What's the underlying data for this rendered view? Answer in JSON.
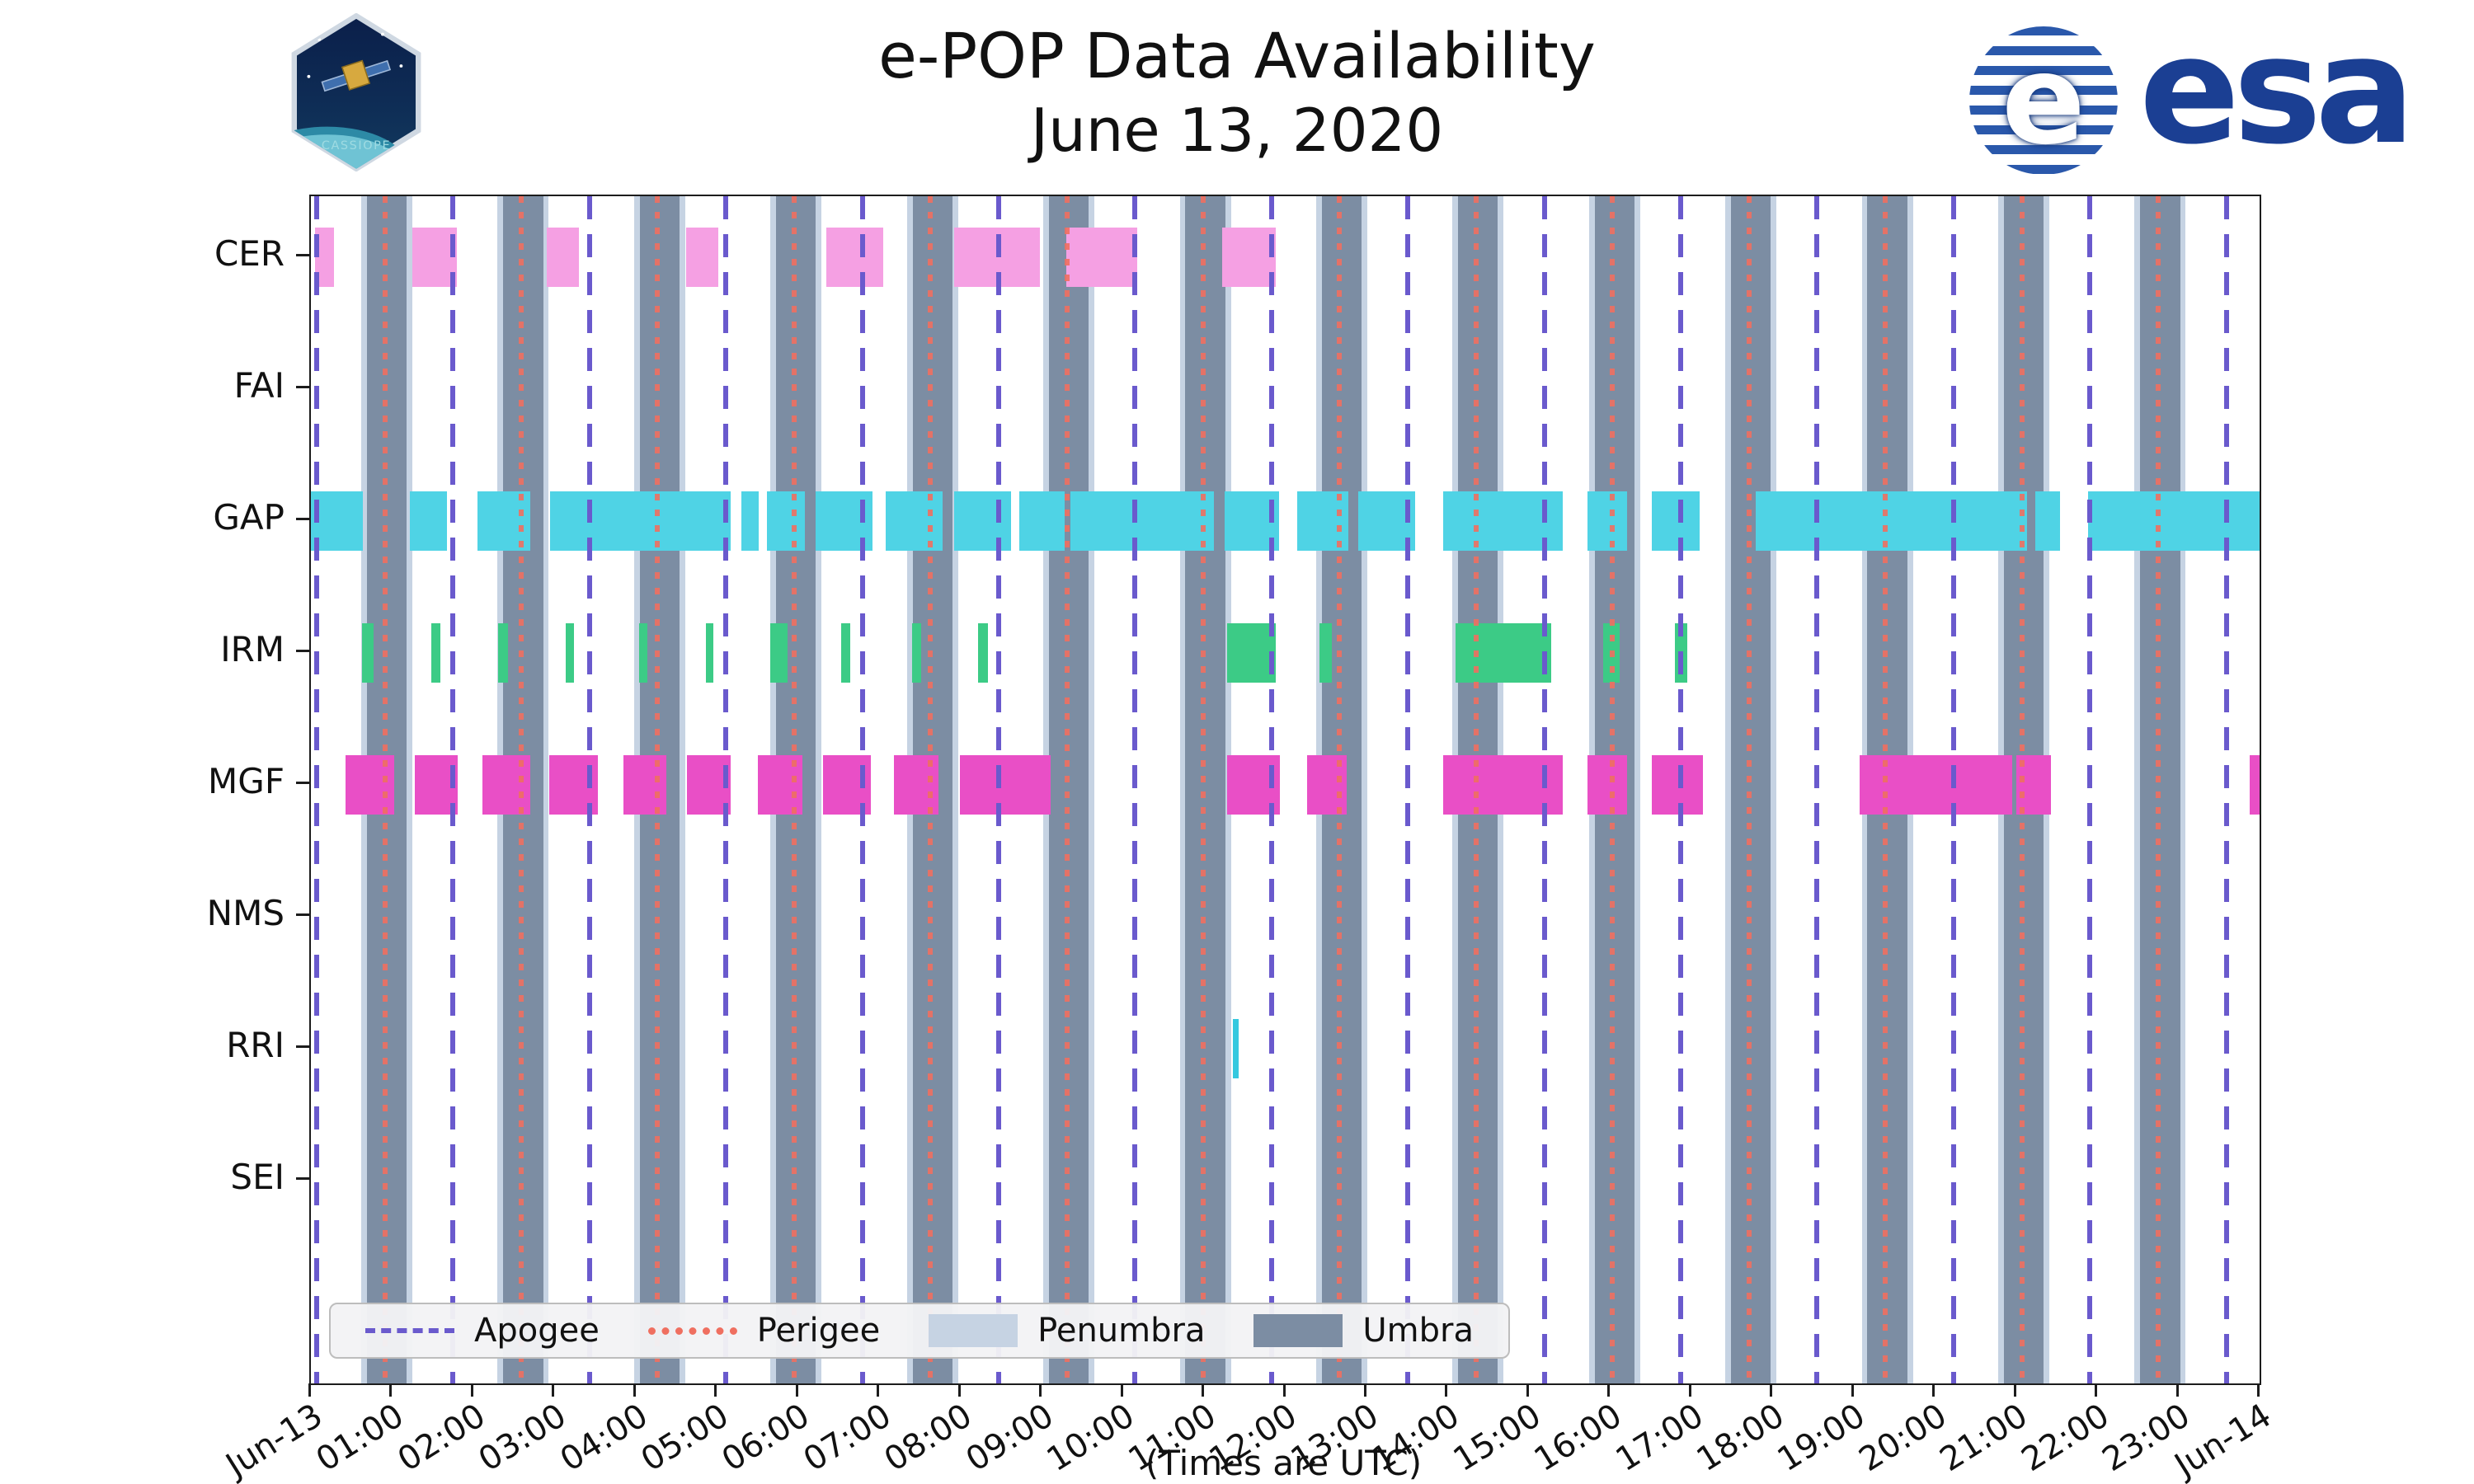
{
  "header": {
    "title": "e-POP Data Availability",
    "subtitle": "June 13, 2020"
  },
  "logos": {
    "cassiope_label": "CASSIOPE",
    "esa_symbol_letter": "e",
    "esa_wordmark": "esa"
  },
  "legend": {
    "items": [
      {
        "label": "Apogee",
        "swatch": "dashed-line",
        "color": "#6A5ACD"
      },
      {
        "label": "Perigee",
        "swatch": "dotted-line",
        "color": "#EF6F60"
      },
      {
        "label": "Penumbra",
        "swatch": "patch",
        "color": "#C6D3E3"
      },
      {
        "label": "Umbra",
        "swatch": "patch",
        "color": "#7C8DA3"
      }
    ]
  },
  "chart_data": {
    "type": "timeline-availability",
    "x_axis_caption": "(Times are UTC)",
    "x_range_hours": [
      0,
      24
    ],
    "x_tick_labels": [
      "Jun-13",
      "01:00",
      "02:00",
      "03:00",
      "04:00",
      "05:00",
      "06:00",
      "07:00",
      "08:00",
      "09:00",
      "10:00",
      "11:00",
      "12:00",
      "13:00",
      "14:00",
      "15:00",
      "16:00",
      "17:00",
      "18:00",
      "19:00",
      "20:00",
      "21:00",
      "22:00",
      "23:00",
      "Jun-14"
    ],
    "rows": [
      {
        "name": "CER",
        "color": "#F5A0E3",
        "segments": [
          [
            0.05,
            0.28
          ],
          [
            1.25,
            1.8
          ],
          [
            2.9,
            3.3
          ],
          [
            4.62,
            5.02
          ],
          [
            6.35,
            7.05
          ],
          [
            7.92,
            8.98
          ],
          [
            9.3,
            10.18
          ],
          [
            11.22,
            11.88
          ]
        ]
      },
      {
        "name": "FAI",
        "color": "#999999",
        "segments": []
      },
      {
        "name": "GAP",
        "color": "#4FD3E5",
        "segments": [
          [
            0.0,
            0.64
          ],
          [
            1.22,
            1.68
          ],
          [
            2.05,
            2.7
          ],
          [
            2.95,
            5.17
          ],
          [
            5.3,
            5.52
          ],
          [
            5.62,
            6.08
          ],
          [
            6.22,
            6.92
          ],
          [
            7.08,
            7.78
          ],
          [
            7.92,
            8.62
          ],
          [
            8.72,
            9.28
          ],
          [
            9.35,
            11.12
          ],
          [
            11.25,
            11.92
          ],
          [
            12.15,
            12.78
          ],
          [
            12.9,
            13.6
          ],
          [
            13.94,
            15.42
          ],
          [
            15.72,
            16.21
          ],
          [
            16.51,
            17.1
          ],
          [
            17.79,
            21.14
          ],
          [
            21.24,
            21.54
          ],
          [
            21.89,
            24.0
          ]
        ]
      },
      {
        "name": "IRM",
        "color": "#3CCB86",
        "segments": [
          [
            0.63,
            0.77
          ],
          [
            1.48,
            1.59
          ],
          [
            2.31,
            2.43
          ],
          [
            3.14,
            3.24
          ],
          [
            4.04,
            4.14
          ],
          [
            4.87,
            4.96
          ],
          [
            5.66,
            5.87
          ],
          [
            6.53,
            6.64
          ],
          [
            7.4,
            7.52
          ],
          [
            8.22,
            8.34
          ],
          [
            11.28,
            11.88
          ],
          [
            12.42,
            12.57
          ],
          [
            14.1,
            15.28
          ],
          [
            15.92,
            16.12
          ],
          [
            16.8,
            16.95
          ]
        ]
      },
      {
        "name": "MGF",
        "color": "#E94FC6",
        "segments": [
          [
            0.43,
            1.03
          ],
          [
            1.28,
            1.81
          ],
          [
            2.11,
            2.7
          ],
          [
            2.94,
            3.53
          ],
          [
            3.85,
            4.38
          ],
          [
            4.63,
            5.17
          ],
          [
            5.5,
            6.05
          ],
          [
            6.31,
            6.9
          ],
          [
            7.18,
            7.73
          ],
          [
            7.99,
            9.11
          ],
          [
            11.28,
            11.93
          ],
          [
            12.27,
            12.76
          ],
          [
            13.94,
            15.42
          ],
          [
            15.72,
            16.21
          ],
          [
            16.51,
            17.14
          ],
          [
            19.07,
            20.95
          ],
          [
            21.0,
            21.43
          ],
          [
            23.88,
            24.0
          ]
        ]
      },
      {
        "name": "NMS",
        "color": "#999999",
        "segments": []
      },
      {
        "name": "RRI",
        "color": "#35C8DF",
        "segments": [
          [
            11.36,
            11.43
          ]
        ]
      },
      {
        "name": "SEI",
        "color": "#999999",
        "segments": []
      }
    ],
    "events": {
      "apogee": {
        "label": "Apogee",
        "color": "#6A5ACD",
        "line_style": "dashed",
        "times": [
          0.07,
          1.75,
          3.43,
          5.11,
          6.79,
          8.47,
          10.15,
          11.83,
          13.51,
          15.19,
          16.87,
          18.55,
          20.23,
          21.91,
          23.59
        ]
      },
      "perigee": {
        "label": "Perigee",
        "color": "#EF6F60",
        "line_style": "dotted",
        "times": [
          0.91,
          2.59,
          4.27,
          5.95,
          7.63,
          9.31,
          10.99,
          12.67,
          14.35,
          16.03,
          17.71,
          19.39,
          21.07,
          22.75
        ]
      },
      "umbra": {
        "label": "Umbra",
        "color": "#7C8DA3",
        "intervals": [
          [
            0.69,
            1.18
          ],
          [
            2.37,
            2.86
          ],
          [
            4.05,
            4.54
          ],
          [
            5.73,
            6.22
          ],
          [
            7.41,
            7.9
          ],
          [
            9.09,
            9.58
          ],
          [
            10.77,
            11.26
          ],
          [
            12.45,
            12.94
          ],
          [
            14.13,
            14.62
          ],
          [
            15.81,
            16.3
          ],
          [
            17.49,
            17.98
          ],
          [
            19.17,
            19.66
          ],
          [
            20.85,
            21.34
          ],
          [
            22.53,
            23.02
          ]
        ]
      },
      "penumbra": {
        "label": "Penumbra",
        "color": "#C6D3E3",
        "intervals": [
          [
            0.62,
            0.69
          ],
          [
            1.18,
            1.25
          ],
          [
            2.3,
            2.37
          ],
          [
            2.86,
            2.93
          ],
          [
            3.98,
            4.05
          ],
          [
            4.54,
            4.61
          ],
          [
            5.66,
            5.73
          ],
          [
            6.22,
            6.29
          ],
          [
            7.34,
            7.41
          ],
          [
            7.9,
            7.97
          ],
          [
            9.02,
            9.09
          ],
          [
            9.58,
            9.65
          ],
          [
            10.7,
            10.77
          ],
          [
            11.26,
            11.33
          ],
          [
            12.38,
            12.45
          ],
          [
            12.94,
            13.01
          ],
          [
            14.06,
            14.13
          ],
          [
            14.62,
            14.69
          ],
          [
            15.74,
            15.81
          ],
          [
            16.3,
            16.37
          ],
          [
            17.42,
            17.49
          ],
          [
            17.98,
            18.05
          ],
          [
            19.1,
            19.17
          ],
          [
            19.66,
            19.73
          ],
          [
            20.78,
            20.85
          ],
          [
            21.34,
            21.41
          ],
          [
            22.46,
            22.53
          ],
          [
            23.02,
            23.09
          ]
        ]
      }
    }
  }
}
